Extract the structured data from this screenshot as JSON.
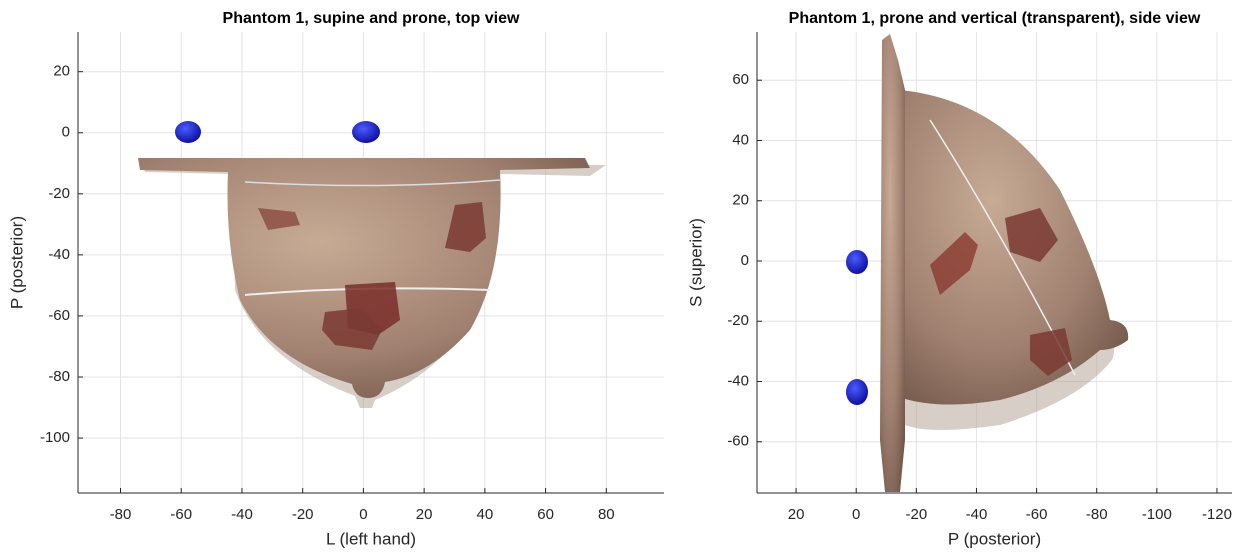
{
  "chart_data": [
    {
      "type": "render",
      "title": "Phantom 1, supine and prone, top view",
      "x_label": "L (left hand)",
      "y_label": "P (posterior)",
      "xlim": [
        -94,
        99
      ],
      "ylim": [
        -118,
        33
      ],
      "xticks": [
        -80,
        -60,
        -40,
        -20,
        0,
        20,
        40,
        60,
        80
      ],
      "yticks": [
        -100,
        -80,
        -60,
        -40,
        -20,
        0,
        20
      ],
      "grid": true
    },
    {
      "type": "render",
      "title": "Phantom 1, prone and vertical (transparent), side view",
      "x_label": "P (posterior)",
      "y_label": "S (superior)",
      "xlim": [
        33,
        -125
      ],
      "ylim": [
        -77,
        76
      ],
      "xticks": [
        20,
        0,
        -20,
        -40,
        -60,
        -80,
        -100,
        -120
      ],
      "yticks": [
        -60,
        -40,
        -20,
        0,
        20,
        40,
        60
      ],
      "grid": true
    }
  ]
}
